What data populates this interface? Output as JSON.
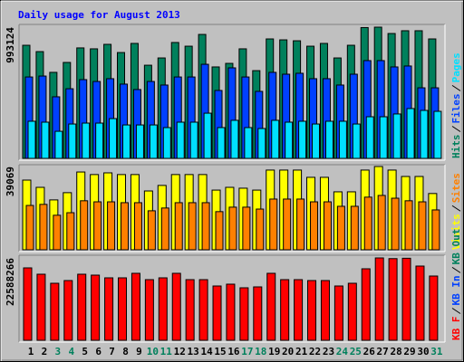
{
  "title": "Daily usage for August 2013",
  "chart_data": [
    {
      "type": "bar",
      "ylim": [
        0,
        993124
      ],
      "yticks": [
        993124
      ],
      "series": [
        {
          "name": "Hits",
          "color": "#00805c",
          "values": [
            856000,
            808000,
            651000,
            726000,
            836000,
            829000,
            863000,
            801000,
            870000,
            705000,
            760000,
            877000,
            849000,
            938000,
            692000,
            719000,
            829000,
            664000,
            904000,
            897000,
            890000,
            849000,
            870000,
            760000,
            856000,
            990000,
            993124,
            945000,
            966000,
            966000,
            904000
          ]
        },
        {
          "name": "Files",
          "color": "#0040ff",
          "values": [
            616000,
            623000,
            466000,
            527000,
            596000,
            582000,
            603000,
            562000,
            521000,
            582000,
            555000,
            616000,
            616000,
            712000,
            514000,
            685000,
            616000,
            507000,
            651000,
            637000,
            644000,
            603000,
            603000,
            555000,
            637000,
            740000,
            740000,
            692000,
            699000,
            534000,
            534000
          ]
        },
        {
          "name": "Pages",
          "color": "#00e0ff",
          "values": [
            281000,
            274000,
            205000,
            260000,
            267000,
            267000,
            301000,
            253000,
            253000,
            253000,
            233000,
            274000,
            274000,
            342000,
            233000,
            288000,
            233000,
            226000,
            288000,
            274000,
            281000,
            260000,
            281000,
            281000,
            260000,
            315000,
            315000,
            336000,
            377000,
            363000,
            356000
          ]
        }
      ]
    },
    {
      "type": "bar",
      "ylim": [
        0,
        39069
      ],
      "yticks": [
        39069
      ],
      "series": [
        {
          "name": "Visits",
          "color": "#ffff00",
          "values": [
            32700,
            29300,
            23400,
            26800,
            36500,
            35300,
            36100,
            35300,
            35300,
            27600,
            30200,
            35300,
            35300,
            35300,
            28000,
            29300,
            28900,
            28000,
            37400,
            37400,
            37400,
            34000,
            34000,
            27200,
            27200,
            37400,
            39069,
            37400,
            34400,
            34400,
            26400
          ]
        },
        {
          "name": "Sites",
          "color": "#ff8000",
          "values": [
            20800,
            21300,
            16200,
            17400,
            23000,
            22500,
            22500,
            22100,
            22100,
            18300,
            19600,
            22100,
            22100,
            22100,
            17900,
            20000,
            20000,
            19100,
            23800,
            23800,
            23800,
            22500,
            22500,
            20400,
            20400,
            24700,
            25500,
            24200,
            23000,
            22500,
            18700
          ]
        }
      ]
    },
    {
      "type": "bar",
      "ylim": [
        0,
        22588266
      ],
      "yticks": [
        22588266
      ],
      "categories": [
        "1",
        "2",
        "3",
        "4",
        "5",
        "6",
        "7",
        "8",
        "9",
        "10",
        "11",
        "12",
        "13",
        "14",
        "15",
        "16",
        "17",
        "18",
        "19",
        "20",
        "21",
        "22",
        "23",
        "24",
        "25",
        "26",
        "27",
        "28",
        "29",
        "30",
        "31"
      ],
      "category_colors": [
        "#000000",
        "#000000",
        "#00805c",
        "#00805c",
        "#000000",
        "#000000",
        "#000000",
        "#000000",
        "#000000",
        "#00805c",
        "#00805c",
        "#000000",
        "#000000",
        "#000000",
        "#000000",
        "#000000",
        "#00805c",
        "#00805c",
        "#000000",
        "#000000",
        "#000000",
        "#000000",
        "#000000",
        "#00805c",
        "#00805c",
        "#000000",
        "#000000",
        "#000000",
        "#000000",
        "#000000",
        "#00805c"
      ],
      "series": [
        {
          "name": "KB F",
          "color": "#ff0000",
          "values": [
            19858000,
            18120000,
            15638000,
            16383000,
            18120000,
            17872000,
            17127000,
            17127000,
            18369000,
            16631000,
            17127000,
            18369000,
            16631000,
            16631000,
            14893000,
            15390000,
            14397000,
            14645000,
            18369000,
            16631000,
            16631000,
            16383000,
            16383000,
            14893000,
            15638000,
            19610000,
            22588266,
            22400000,
            22500000,
            20354000,
            17624000
          ]
        },
        {
          "name": "KB In",
          "color": "#0040ff"
        },
        {
          "name": "KB Out",
          "color": "#00805c"
        }
      ]
    }
  ]
}
